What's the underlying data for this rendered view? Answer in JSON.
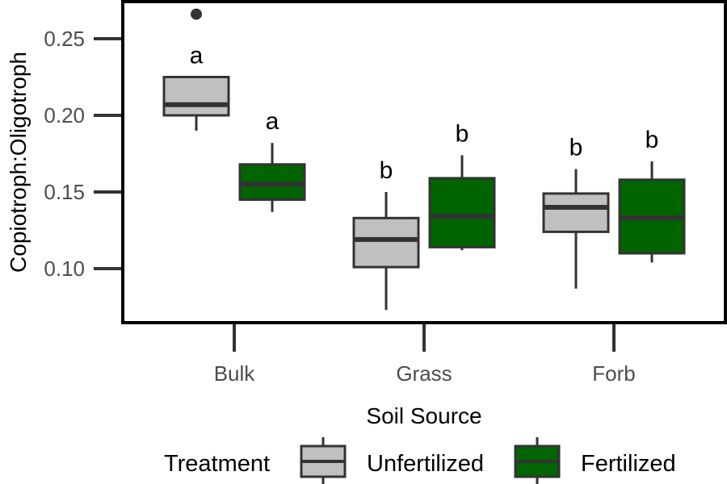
{
  "chart_data": {
    "type": "boxplot",
    "xlabel": "Soil Source",
    "ylabel": "Copiotroph:Oligotroph",
    "categories": [
      "Bulk",
      "Grass",
      "Forb"
    ],
    "ylim": [
      0.07,
      0.27
    ],
    "yticks": [
      0.1,
      0.15,
      0.2,
      0.25
    ],
    "ytick_labels": [
      "0.10",
      "0.15",
      "0.20",
      "0.25"
    ],
    "grid": false,
    "legend": {
      "title": "Treatment",
      "position": "bottom",
      "entries": [
        "Unfertilized",
        "Fertilized"
      ]
    },
    "series": [
      {
        "name": "Unfertilized",
        "color": "#c0c0c0",
        "boxes": [
          {
            "category": "Bulk",
            "whisker_low": 0.19,
            "q1": 0.2,
            "median": 0.207,
            "q3": 0.225,
            "whisker_high": 0.225,
            "outliers": [
              0.266
            ],
            "letter": "a"
          },
          {
            "category": "Grass",
            "whisker_low": 0.073,
            "q1": 0.101,
            "median": 0.119,
            "q3": 0.133,
            "whisker_high": 0.15,
            "outliers": [],
            "letter": "b"
          },
          {
            "category": "Forb",
            "whisker_low": 0.087,
            "q1": 0.124,
            "median": 0.14,
            "q3": 0.149,
            "whisker_high": 0.165,
            "outliers": [],
            "letter": "b"
          }
        ]
      },
      {
        "name": "Fertilized",
        "color": "#006400",
        "boxes": [
          {
            "category": "Bulk",
            "whisker_low": 0.137,
            "q1": 0.145,
            "median": 0.155,
            "q3": 0.168,
            "whisker_high": 0.182,
            "outliers": [],
            "letter": "a"
          },
          {
            "category": "Grass",
            "whisker_low": 0.112,
            "q1": 0.114,
            "median": 0.134,
            "q3": 0.159,
            "whisker_high": 0.174,
            "outliers": [],
            "letter": "b"
          },
          {
            "category": "Forb",
            "whisker_low": 0.104,
            "q1": 0.11,
            "median": 0.133,
            "q3": 0.158,
            "whisker_high": 0.17,
            "outliers": [],
            "letter": "b"
          }
        ]
      }
    ]
  }
}
